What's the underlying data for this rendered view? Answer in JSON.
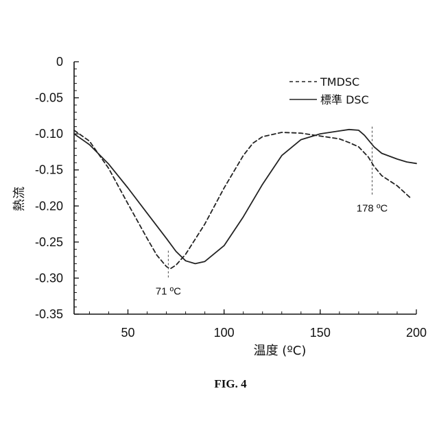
{
  "chart_data": {
    "type": "line",
    "title": "",
    "xlabel": "温度 (ºC)",
    "ylabel": "熱流",
    "xlim": [
      22,
      200
    ],
    "ylim": [
      -0.35,
      0
    ],
    "x_ticks": [
      50,
      100,
      150,
      200
    ],
    "y_ticks": [
      0,
      -0.05,
      -0.1,
      -0.15,
      -0.2,
      -0.25,
      -0.3,
      -0.35
    ],
    "x_tick_labels": [
      "50",
      "100",
      "150",
      "200"
    ],
    "y_tick_labels": [
      "0",
      "-0.05",
      "-0.10",
      "-0.15",
      "-0.20",
      "-0.25",
      "-0.30",
      "-0.35"
    ],
    "grid": false,
    "legend_position": "top-right",
    "series": [
      {
        "name": "TMDSC",
        "style": "dashed",
        "color": "#222222",
        "points": [
          [
            22,
            -0.095
          ],
          [
            30,
            -0.11
          ],
          [
            40,
            -0.148
          ],
          [
            50,
            -0.197
          ],
          [
            60,
            -0.245
          ],
          [
            65,
            -0.268
          ],
          [
            70,
            -0.284
          ],
          [
            72,
            -0.287
          ],
          [
            75,
            -0.282
          ],
          [
            80,
            -0.267
          ],
          [
            90,
            -0.225
          ],
          [
            100,
            -0.175
          ],
          [
            110,
            -0.13
          ],
          [
            115,
            -0.113
          ],
          [
            120,
            -0.104
          ],
          [
            130,
            -0.098
          ],
          [
            140,
            -0.099
          ],
          [
            150,
            -0.103
          ],
          [
            160,
            -0.107
          ],
          [
            165,
            -0.112
          ],
          [
            170,
            -0.118
          ],
          [
            175,
            -0.132
          ],
          [
            178,
            -0.145
          ],
          [
            182,
            -0.158
          ],
          [
            190,
            -0.172
          ],
          [
            197,
            -0.189
          ]
        ]
      },
      {
        "name": "標準 DSC",
        "style": "solid",
        "color": "#222222",
        "points": [
          [
            22,
            -0.1
          ],
          [
            30,
            -0.115
          ],
          [
            40,
            -0.142
          ],
          [
            50,
            -0.175
          ],
          [
            60,
            -0.21
          ],
          [
            70,
            -0.245
          ],
          [
            75,
            -0.263
          ],
          [
            80,
            -0.276
          ],
          [
            85,
            -0.28
          ],
          [
            90,
            -0.277
          ],
          [
            100,
            -0.255
          ],
          [
            110,
            -0.215
          ],
          [
            120,
            -0.17
          ],
          [
            130,
            -0.13
          ],
          [
            140,
            -0.108
          ],
          [
            150,
            -0.1
          ],
          [
            160,
            -0.096
          ],
          [
            165,
            -0.094
          ],
          [
            170,
            -0.095
          ],
          [
            173,
            -0.102
          ],
          [
            178,
            -0.118
          ],
          [
            182,
            -0.127
          ],
          [
            190,
            -0.135
          ],
          [
            195,
            -0.139
          ],
          [
            200,
            -0.141
          ]
        ]
      }
    ],
    "annotations": [
      {
        "text": "71 ºC",
        "x": 71
      },
      {
        "text": "178 ºC",
        "x": 177
      }
    ]
  },
  "caption": "FIG. 4"
}
